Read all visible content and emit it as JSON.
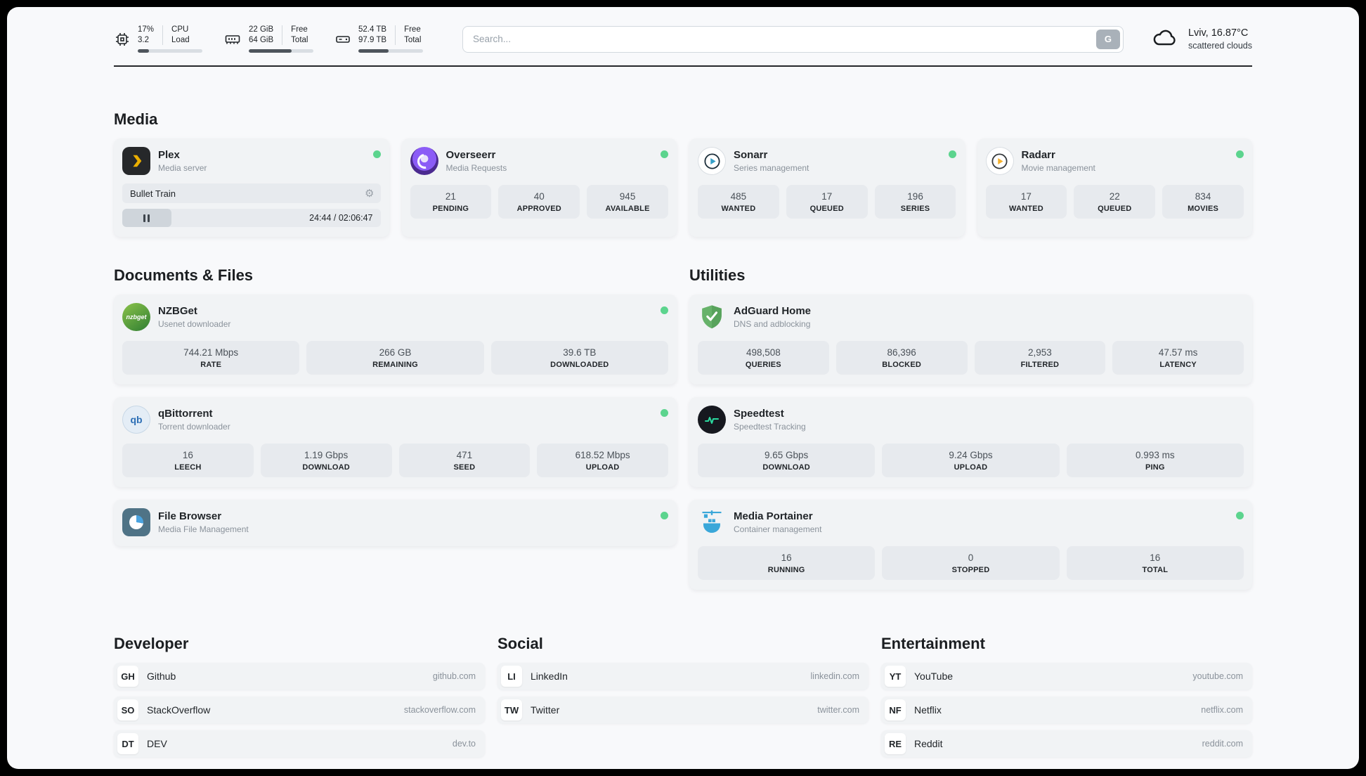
{
  "colors": {
    "status_online": "#5cd48e"
  },
  "header": {
    "cpu": {
      "value_top": "17%",
      "value_bottom": "3.2",
      "label_top": "CPU",
      "label_bottom": "Load",
      "progress_percent": 17
    },
    "memory": {
      "value_top": "22 GiB",
      "value_bottom": "64 GiB",
      "label_top": "Free",
      "label_bottom": "Total",
      "progress_percent": 66
    },
    "storage": {
      "value_top": "52.4 TB",
      "value_bottom": "97.9 TB",
      "label_top": "Free",
      "label_bottom": "Total",
      "progress_percent": 47
    },
    "search": {
      "placeholder": "Search...",
      "button_label": "G"
    },
    "weather": {
      "location": "Lviv, 16.87°C",
      "condition": "scattered clouds"
    }
  },
  "sections": {
    "media": {
      "title": "Media",
      "apps": [
        {
          "name": "Plex",
          "subtitle": "Media server",
          "status": "online",
          "now_playing": {
            "title": "Bullet Train",
            "time": "24:44 / 02:06:47",
            "progress_percent": 19
          }
        },
        {
          "name": "Overseerr",
          "subtitle": "Media Requests",
          "status": "online",
          "stats": [
            {
              "value": "21",
              "label": "PENDING"
            },
            {
              "value": "40",
              "label": "APPROVED"
            },
            {
              "value": "945",
              "label": "AVAILABLE"
            }
          ]
        },
        {
          "name": "Sonarr",
          "subtitle": "Series management",
          "status": "online",
          "stats": [
            {
              "value": "485",
              "label": "WANTED"
            },
            {
              "value": "17",
              "label": "QUEUED"
            },
            {
              "value": "196",
              "label": "SERIES"
            }
          ]
        },
        {
          "name": "Radarr",
          "subtitle": "Movie management",
          "status": "online",
          "stats": [
            {
              "value": "17",
              "label": "WANTED"
            },
            {
              "value": "22",
              "label": "QUEUED"
            },
            {
              "value": "834",
              "label": "MOVIES"
            }
          ]
        }
      ]
    },
    "documents": {
      "title": "Documents & Files",
      "apps": [
        {
          "name": "NZBGet",
          "subtitle": "Usenet downloader",
          "status": "online",
          "icon_text": "nzbget",
          "stats": [
            {
              "value": "744.21 Mbps",
              "label": "RATE"
            },
            {
              "value": "266 GB",
              "label": "REMAINING"
            },
            {
              "value": "39.6 TB",
              "label": "DOWNLOADED"
            }
          ]
        },
        {
          "name": "qBittorrent",
          "subtitle": "Torrent downloader",
          "status": "online",
          "icon_text": "qb",
          "stats": [
            {
              "value": "16",
              "label": "LEECH"
            },
            {
              "value": "1.19 Gbps",
              "label": "DOWNLOAD"
            },
            {
              "value": "471",
              "label": "SEED"
            },
            {
              "value": "618.52 Mbps",
              "label": "UPLOAD"
            }
          ]
        },
        {
          "name": "File Browser",
          "subtitle": "Media File Management",
          "status": "online",
          "stats": []
        }
      ]
    },
    "utilities": {
      "title": "Utilities",
      "apps": [
        {
          "name": "AdGuard Home",
          "subtitle": "DNS and adblocking",
          "stats": [
            {
              "value": "498,508",
              "label": "QUERIES"
            },
            {
              "value": "86,396",
              "label": "BLOCKED"
            },
            {
              "value": "2,953",
              "label": "FILTERED"
            },
            {
              "value": "47.57 ms",
              "label": "LATENCY"
            }
          ]
        },
        {
          "name": "Speedtest",
          "subtitle": "Speedtest Tracking",
          "stats": [
            {
              "value": "9.65 Gbps",
              "label": "DOWNLOAD"
            },
            {
              "value": "9.24 Gbps",
              "label": "UPLOAD"
            },
            {
              "value": "0.993 ms",
              "label": "PING"
            }
          ]
        },
        {
          "name": "Media Portainer",
          "subtitle": "Container management",
          "status": "online",
          "stats": [
            {
              "value": "16",
              "label": "RUNNING"
            },
            {
              "value": "0",
              "label": "STOPPED"
            },
            {
              "value": "16",
              "label": "TOTAL"
            }
          ]
        }
      ]
    },
    "bookmarks": [
      {
        "title": "Developer",
        "links": [
          {
            "abbr": "GH",
            "name": "Github",
            "url": "github.com"
          },
          {
            "abbr": "SO",
            "name": "StackOverflow",
            "url": "stackoverflow.com"
          },
          {
            "abbr": "DT",
            "name": "DEV",
            "url": "dev.to"
          }
        ]
      },
      {
        "title": "Social",
        "links": [
          {
            "abbr": "LI",
            "name": "LinkedIn",
            "url": "linkedin.com"
          },
          {
            "abbr": "TW",
            "name": "Twitter",
            "url": "twitter.com"
          }
        ]
      },
      {
        "title": "Entertainment",
        "links": [
          {
            "abbr": "YT",
            "name": "YouTube",
            "url": "youtube.com"
          },
          {
            "abbr": "NF",
            "name": "Netflix",
            "url": "netflix.com"
          },
          {
            "abbr": "RE",
            "name": "Reddit",
            "url": "reddit.com"
          }
        ]
      }
    ]
  }
}
